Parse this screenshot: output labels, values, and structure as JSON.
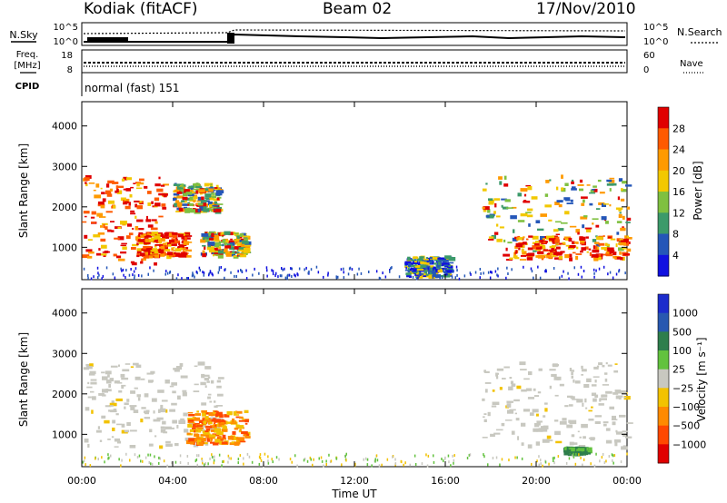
{
  "header": {
    "station": "Kodiak (fitACF)",
    "beam": "Beam 02",
    "date": "17/Nov/2010"
  },
  "top_panels": {
    "nsky_label": "N.Sky",
    "nsearch_label": "N.Search",
    "noise_ticks": [
      "10^5",
      "10^0"
    ],
    "freq_label_1": "Freq.",
    "freq_label_2": "[MHz]",
    "freq_ticks": [
      "18",
      "8"
    ],
    "nave_label": "Nave",
    "nave_ticks": [
      "60",
      "0"
    ],
    "cpid_label": "CPID",
    "cpid_value": "normal (fast) 151"
  },
  "chart_data": [
    {
      "type": "heatmap",
      "panel": "power",
      "title": "",
      "xlabel": "",
      "ylabel": "Slant Range [km]",
      "x_ticks": [
        "00:00",
        "04:00",
        "08:00",
        "12:00",
        "16:00",
        "20:00",
        "00:00"
      ],
      "y_ticks": [
        1000,
        2000,
        3000,
        4000
      ],
      "ylim": [
        200,
        4600
      ],
      "colorbar": {
        "label": "Power [dB]",
        "ticks": [
          "28",
          "24",
          "20",
          "16",
          "12",
          "8",
          "4"
        ],
        "colors": [
          "#e00000",
          "#ff5a00",
          "#ff9a00",
          "#f2c800",
          "#7fc040",
          "#3c9a6a",
          "#2456b8",
          "#1010e0"
        ]
      },
      "regions": [
        {
          "t0": 0.0,
          "t1": 3.6,
          "r0": 600,
          "r1": 2800,
          "level": "high"
        },
        {
          "t0": 2.4,
          "t1": 4.6,
          "r0": 800,
          "r1": 1400,
          "level": "high"
        },
        {
          "t0": 4.0,
          "t1": 6.0,
          "r0": 1900,
          "r1": 2600,
          "level": "medium"
        },
        {
          "t0": 5.2,
          "t1": 7.2,
          "r0": 800,
          "r1": 1400,
          "level": "medium"
        },
        {
          "t0": 14.2,
          "t1": 16.2,
          "r0": 300,
          "r1": 800,
          "level": "low"
        },
        {
          "t0": 17.6,
          "t1": 24.0,
          "r0": 700,
          "r1": 2800,
          "level": "medium"
        },
        {
          "t0": 19.0,
          "t1": 24.0,
          "r0": 750,
          "r1": 1300,
          "level": "high"
        }
      ]
    },
    {
      "type": "heatmap",
      "panel": "velocity",
      "title": "",
      "xlabel": "Time UT",
      "ylabel": "Slant Range [km]",
      "x_ticks": [
        "00:00",
        "04:00",
        "08:00",
        "12:00",
        "16:00",
        "20:00",
        "00:00"
      ],
      "y_ticks": [
        1000,
        2000,
        3000,
        4000
      ],
      "ylim": [
        200,
        4600
      ],
      "colorbar": {
        "label": "Velocity [m s⁻¹]",
        "ticks": [
          "1000",
          "500",
          "100",
          "25",
          "−25",
          "−100",
          "−500",
          "−1000"
        ],
        "colors": [
          "#1c2ccc",
          "#2858b0",
          "#2e7e4c",
          "#62c23e",
          "#c8c8c0",
          "#f2c200",
          "#ff8a00",
          "#ff4800",
          "#e00000"
        ]
      },
      "regions": [
        {
          "t0": 0.0,
          "t1": 6.0,
          "r0": 700,
          "r1": 2800,
          "level": "ground"
        },
        {
          "t0": 4.6,
          "t1": 7.2,
          "r0": 800,
          "r1": 1600,
          "level": "negative"
        },
        {
          "t0": 17.6,
          "t1": 24.0,
          "r0": 700,
          "r1": 2800,
          "level": "ground"
        },
        {
          "t0": 21.2,
          "t1": 22.2,
          "r0": 550,
          "r1": 700,
          "level": "positive"
        }
      ]
    }
  ]
}
